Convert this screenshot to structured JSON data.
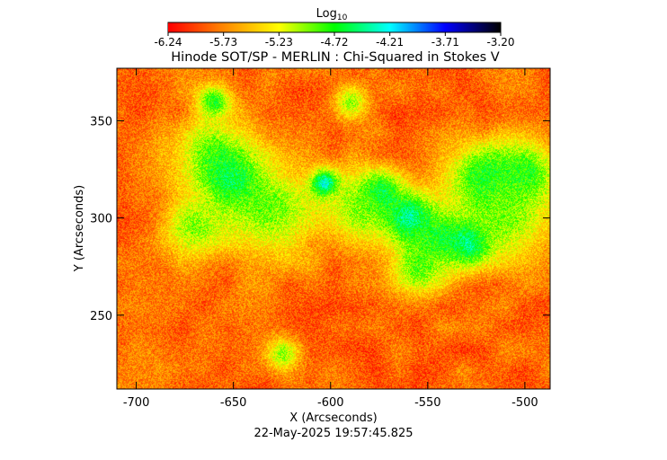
{
  "chart_data": {
    "type": "heatmap",
    "title": "Hinode SOT/SP - MERLIN : Chi-Squared in Stokes V",
    "xlabel": "X (Arcseconds)",
    "ylabel": "Y (Arcseconds)",
    "xlim": [
      -710,
      -487
    ],
    "ylim": [
      212,
      377
    ],
    "x_ticks": [
      -700,
      -650,
      -600,
      -550,
      -500
    ],
    "y_ticks": [
      250,
      300,
      350
    ],
    "colorbar": {
      "label_base": "Log",
      "label_sub": "10",
      "range": [
        -6.24,
        -3.2
      ],
      "ticks": [
        "-6.24",
        "-5.73",
        "-5.23",
        "-4.72",
        "-4.21",
        "-3.71",
        "-3.20"
      ],
      "palette": [
        "#ff0000",
        "#ff8800",
        "#ffff00",
        "#00ff00",
        "#00ffff",
        "#0000ff",
        "#000000"
      ]
    },
    "background_level": -5.85,
    "features": [
      {
        "x": -660,
        "y": 333,
        "peak": -4.75,
        "spread": 14
      },
      {
        "x": -650,
        "y": 318,
        "peak": -4.3,
        "spread": 10
      },
      {
        "x": -632,
        "y": 305,
        "peak": -4.8,
        "spread": 18
      },
      {
        "x": -603,
        "y": 318,
        "peak": -3.9,
        "spread": 5
      },
      {
        "x": -575,
        "y": 312,
        "peak": -4.1,
        "spread": 8
      },
      {
        "x": -560,
        "y": 300,
        "peak": -4.0,
        "spread": 9
      },
      {
        "x": -545,
        "y": 290,
        "peak": -4.6,
        "spread": 12
      },
      {
        "x": -528,
        "y": 288,
        "peak": -4.1,
        "spread": 8
      },
      {
        "x": -520,
        "y": 320,
        "peak": -4.5,
        "spread": 14
      },
      {
        "x": -500,
        "y": 322,
        "peak": -4.6,
        "spread": 12
      },
      {
        "x": -510,
        "y": 300,
        "peak": -4.9,
        "spread": 16
      },
      {
        "x": -585,
        "y": 305,
        "peak": -4.9,
        "spread": 14
      },
      {
        "x": -555,
        "y": 275,
        "peak": -4.8,
        "spread": 10
      },
      {
        "x": -670,
        "y": 296,
        "peak": -4.9,
        "spread": 12
      },
      {
        "x": -660,
        "y": 360,
        "peak": -4.6,
        "spread": 6
      },
      {
        "x": -590,
        "y": 360,
        "peak": -4.9,
        "spread": 6
      },
      {
        "x": -625,
        "y": 230,
        "peak": -4.9,
        "spread": 6
      }
    ],
    "timestamp": "22-May-2025 19:57:45.825"
  }
}
